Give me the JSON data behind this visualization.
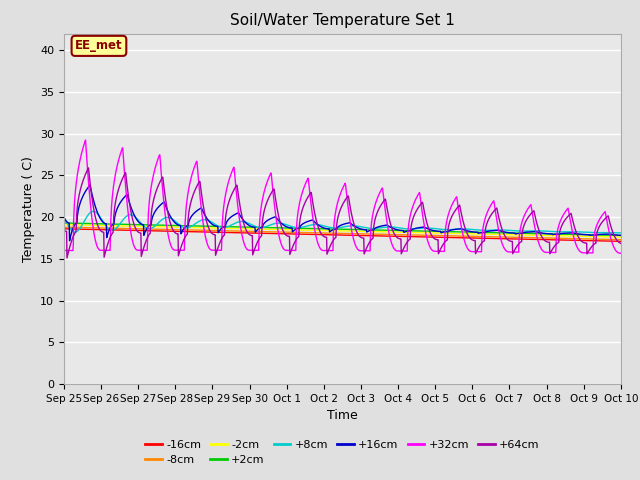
{
  "title": "Soil/Water Temperature Set 1",
  "xlabel": "Time",
  "ylabel": "Temperature ( C)",
  "ylim": [
    0,
    42
  ],
  "yticks": [
    0,
    5,
    10,
    15,
    20,
    25,
    30,
    35,
    40
  ],
  "background_color": "#e0e0e0",
  "plot_bg_color": "#e8e8e8",
  "annotation_text": "EE_met",
  "annotation_box_color": "#ffff99",
  "annotation_border_color": "#8B0000",
  "series": [
    {
      "label": "-16cm",
      "color": "#ff0000"
    },
    {
      "label": "-8cm",
      "color": "#ff8800"
    },
    {
      "label": "-2cm",
      "color": "#ffff00"
    },
    {
      "label": "+2cm",
      "color": "#00cc00"
    },
    {
      "label": "+8cm",
      "color": "#00cccc"
    },
    {
      "label": "+16cm",
      "color": "#0000cc"
    },
    {
      "label": "+32cm",
      "color": "#ff00ff"
    },
    {
      "label": "+64cm",
      "color": "#aa00aa"
    }
  ],
  "x_tick_labels": [
    "Sep 25",
    "Sep 26",
    "Sep 27",
    "Sep 28",
    "Sep 29",
    "Sep 30",
    "Oct 1",
    "Oct 2",
    "Oct 3",
    "Oct 4",
    "Oct 5",
    "Oct 6",
    "Oct 7",
    "Oct 8",
    "Oct 9",
    "Oct 10"
  ],
  "n_points": 1500
}
